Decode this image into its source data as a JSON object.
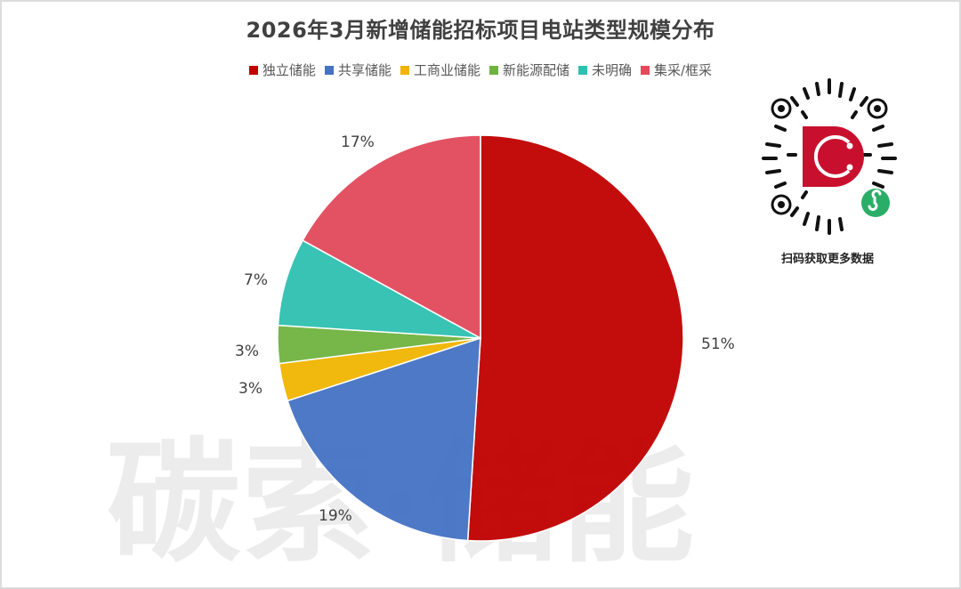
{
  "title": "2026年3月新增储能招标项目电站类型规模分布",
  "watermark": "碳索·储能",
  "qr": {
    "caption": "扫码获取更多数据",
    "logo_letter": "C"
  },
  "legend": [
    {
      "label": "独立储能",
      "color": "#C00000"
    },
    {
      "label": "共享储能",
      "color": "#4472C4"
    },
    {
      "label": "工商业储能",
      "color": "#F0B400"
    },
    {
      "label": "新能源配储",
      "color": "#70B23F"
    },
    {
      "label": "未明确",
      "color": "#2EC0B0"
    },
    {
      "label": "集采/框采",
      "color": "#E2495B"
    }
  ],
  "labels": {
    "s0": "51%",
    "s1": "19%",
    "s2": "3%",
    "s3": "3%",
    "s4": "7%",
    "s5": "17%"
  },
  "chart_data": {
    "type": "pie",
    "title": "2026年3月新增储能招标项目电站类型规模分布",
    "categories": [
      "独立储能",
      "共享储能",
      "工商业储能",
      "新能源配储",
      "未明确",
      "集采/框采"
    ],
    "values": [
      51,
      19,
      3,
      3,
      7,
      17
    ],
    "unit": "%",
    "colors": [
      "#C00000",
      "#4472C4",
      "#F0B400",
      "#70B23F",
      "#2EC0B0",
      "#E2495B"
    ],
    "start_angle": "12 o'clock",
    "direction": "clockwise",
    "legend_position": "top"
  }
}
